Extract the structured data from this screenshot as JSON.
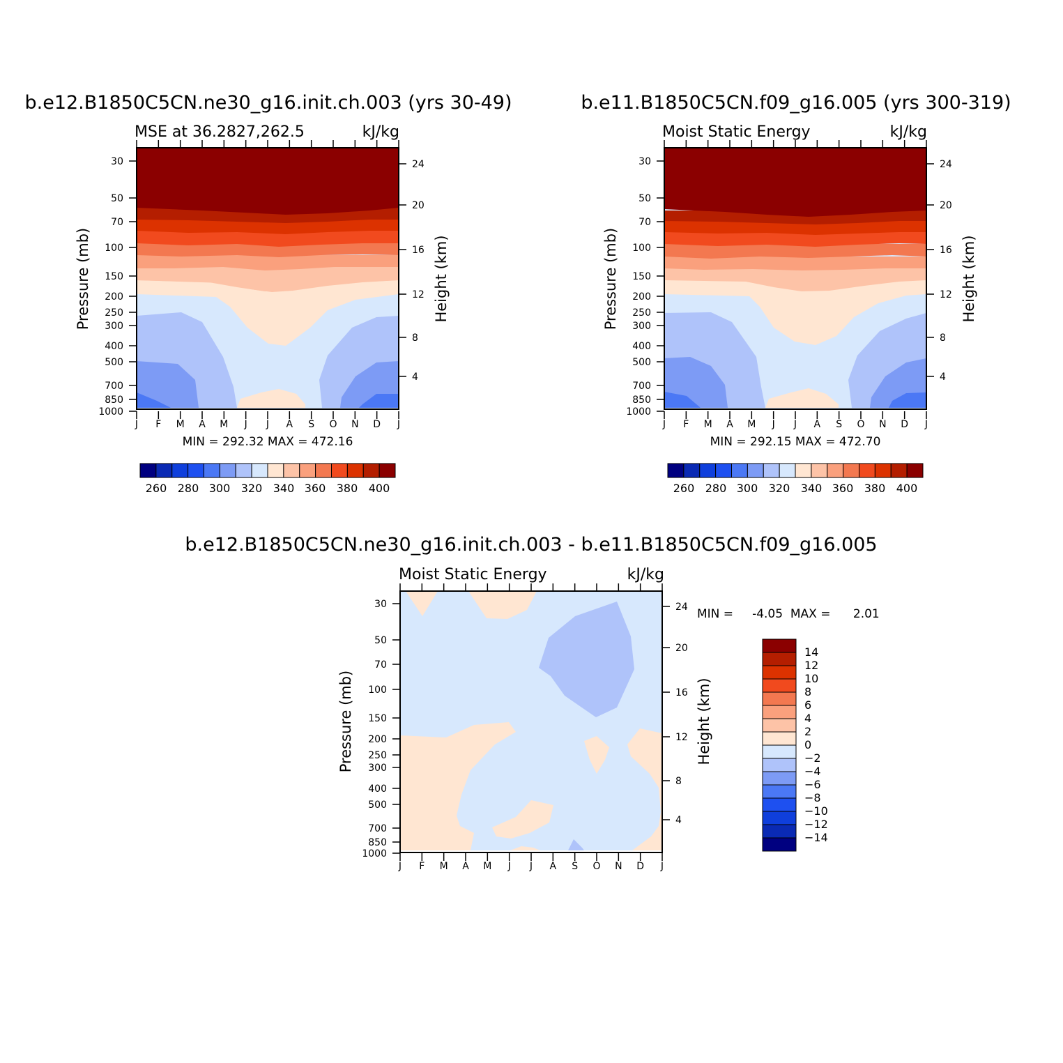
{
  "colors": {
    "mse_levels": [
      "#000080",
      "#0a2ab4",
      "#0f3fdc",
      "#1e50f0",
      "#4b78f5",
      "#7d9bf5",
      "#afc3fa",
      "#d7e8fd",
      "#ffe6d2",
      "#fdc3a7",
      "#faa07d",
      "#f37850",
      "#f14a1e",
      "#dc3200",
      "#b41e00",
      "#8b0000"
    ],
    "diff_levels": [
      "#000080",
      "#0a2ab4",
      "#0f3fdc",
      "#1e50f0",
      "#4b78f5",
      "#7d9bf5",
      "#afc3fa",
      "#d7e8fd",
      "#ffe6d2",
      "#fdc3a7",
      "#faa07d",
      "#f37850",
      "#f14a1e",
      "#dc3200",
      "#b41e00",
      "#8b0000"
    ]
  },
  "chart_data": [
    {
      "type": "heatmap",
      "title": "b.e12.B1850C5CN.ne30_g16.init.ch.003 (yrs 30-49)",
      "subtitle_left": "MSE at 36.2827,262.5",
      "units": "kJ/kg",
      "ylabel": "Pressure (mb)",
      "y2label": "Height (km)",
      "x_ticks": [
        "J",
        "F",
        "M",
        "A",
        "M",
        "J",
        "J",
        "A",
        "S",
        "O",
        "N",
        "D",
        "J"
      ],
      "y_ticks": [
        30,
        50,
        70,
        100,
        150,
        200,
        250,
        300,
        400,
        500,
        700,
        850,
        1000
      ],
      "y2_ticks": [
        24,
        20,
        16,
        12,
        8,
        4
      ],
      "ylim": [
        1000,
        25
      ],
      "y_scale": "log",
      "min_max": "MIN =  292.32  MAX =  472.16",
      "colorbar_labels": [
        "260",
        "280",
        "300",
        "320",
        "340",
        "360",
        "380",
        "400"
      ],
      "colorbar_orientation": "horizontal",
      "approx_field": {
        "description_levels_kJkg": "surface ~300-310 in winter, ~330-340 in summer; 320-330 mid-troposphere; rising to >400 above ~60 mb",
        "bands_pressure_mb": [
          {
            "range": "60-25",
            "value": ">400"
          },
          {
            "range": "75-60",
            "value": "390-400"
          },
          {
            "range": "90-75",
            "value": "380-390"
          },
          {
            "range": "110-90",
            "value": "370-380"
          },
          {
            "range": "135-110",
            "value": "360-370"
          },
          {
            "range": "170-135",
            "value": "350-360"
          },
          {
            "range": "200-170",
            "value": "340-350"
          }
        ]
      }
    },
    {
      "type": "heatmap",
      "title": "b.e11.B1850C5CN.f09_g16.005 (yrs 300-319)",
      "subtitle_left": "Moist Static Energy",
      "units": "kJ/kg",
      "ylabel": "Pressure (mb)",
      "y2label": "Height (km)",
      "x_ticks": [
        "J",
        "F",
        "M",
        "A",
        "M",
        "J",
        "J",
        "A",
        "S",
        "O",
        "N",
        "D",
        "J"
      ],
      "y_ticks": [
        30,
        50,
        70,
        100,
        150,
        200,
        250,
        300,
        400,
        500,
        700,
        850,
        1000
      ],
      "y2_ticks": [
        24,
        20,
        16,
        12,
        8,
        4
      ],
      "ylim": [
        1000,
        25
      ],
      "y_scale": "log",
      "min_max": "MIN =  292.15  MAX =  472.70",
      "colorbar_labels": [
        "260",
        "280",
        "300",
        "320",
        "340",
        "360",
        "380",
        "400"
      ],
      "colorbar_orientation": "horizontal"
    },
    {
      "type": "heatmap",
      "title": "b.e12.B1850C5CN.ne30_g16.init.ch.003 - b.e11.B1850C5CN.f09_g16.005",
      "subtitle_left": "Moist Static Energy",
      "units": "kJ/kg",
      "ylabel": "Pressure (mb)",
      "y2label": "Height (km)",
      "x_ticks": [
        "J",
        "F",
        "M",
        "A",
        "M",
        "J",
        "J",
        "A",
        "S",
        "O",
        "N",
        "D",
        "J"
      ],
      "y_ticks": [
        30,
        50,
        70,
        100,
        150,
        200,
        250,
        300,
        400,
        500,
        700,
        850,
        1000
      ],
      "y2_ticks": [
        24,
        20,
        16,
        12,
        8,
        4
      ],
      "ylim": [
        1000,
        25
      ],
      "y_scale": "log",
      "min_max": "MIN =     -4.05  MAX =      2.01",
      "colorbar_labels": [
        "14",
        "12",
        "10",
        "8",
        "6",
        "4",
        "2",
        "0",
        "−2",
        "−4",
        "−6",
        "−8",
        "−10",
        "−12",
        "−14"
      ],
      "colorbar_orientation": "vertical",
      "approx_field": {
        "description": "Mostly -2..0 (light blue); 0..2 (peach) patches near surface Jan-Mar, Nov-Dec, summer surface patch, upper-level Jan-Feb and Jun-Jul patches; -4..-2 patch ~40-150 mb in Aug-Oct"
      }
    }
  ]
}
